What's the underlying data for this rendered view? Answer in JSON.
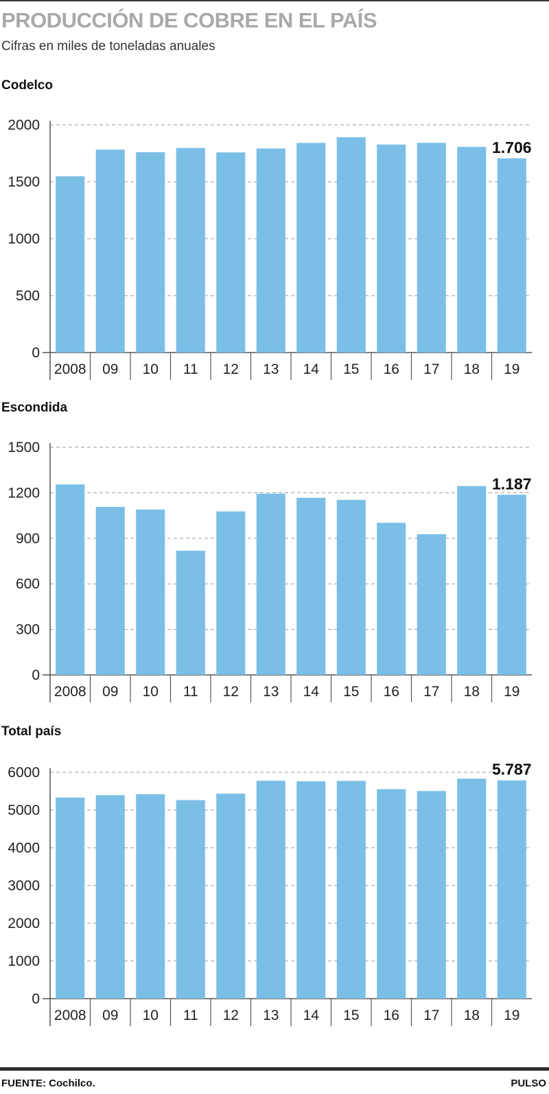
{
  "header": {
    "title": "PRODUCCIÓN DE COBRE EN EL PAÍS",
    "subtitle": "Cifras en miles de toneladas anuales"
  },
  "footer": {
    "source": "FUENTE: Cochilco.",
    "brand": "PULSO"
  },
  "colors": {
    "bar": "#7bbfe6",
    "grid": "#9a9a9a",
    "axis": "#555555"
  },
  "chart_data": [
    {
      "type": "bar",
      "title": "Codelco",
      "categories": [
        "2008",
        "09",
        "10",
        "11",
        "12",
        "13",
        "14",
        "15",
        "16",
        "17",
        "18",
        "19"
      ],
      "values": [
        1548,
        1782,
        1760,
        1796,
        1758,
        1792,
        1841,
        1891,
        1827,
        1842,
        1806,
        1706
      ],
      "yticks": [
        0,
        500,
        1000,
        1500,
        2000
      ],
      "ylim": [
        0,
        2000
      ],
      "callout": "1.706",
      "grid": true
    },
    {
      "type": "bar",
      "title": "Escondida",
      "categories": [
        "2008",
        "09",
        "10",
        "11",
        "12",
        "13",
        "14",
        "15",
        "16",
        "17",
        "18",
        "19"
      ],
      "values": [
        1255,
        1107,
        1089,
        818,
        1077,
        1194,
        1167,
        1153,
        1002,
        927,
        1244,
        1187
      ],
      "yticks": [
        0,
        300,
        600,
        900,
        1200,
        1500
      ],
      "ylim": [
        0,
        1500
      ],
      "callout": "1.187",
      "grid": true
    },
    {
      "type": "bar",
      "title": "Total país",
      "categories": [
        "2008",
        "09",
        "10",
        "11",
        "12",
        "13",
        "14",
        "15",
        "16",
        "17",
        "18",
        "19"
      ],
      "values": [
        5330,
        5394,
        5419,
        5263,
        5434,
        5776,
        5761,
        5772,
        5553,
        5504,
        5832,
        5787
      ],
      "yticks": [
        0,
        1000,
        2000,
        3000,
        4000,
        5000,
        6000
      ],
      "ylim": [
        0,
        6000
      ],
      "callout": "5.787",
      "grid": true
    }
  ]
}
